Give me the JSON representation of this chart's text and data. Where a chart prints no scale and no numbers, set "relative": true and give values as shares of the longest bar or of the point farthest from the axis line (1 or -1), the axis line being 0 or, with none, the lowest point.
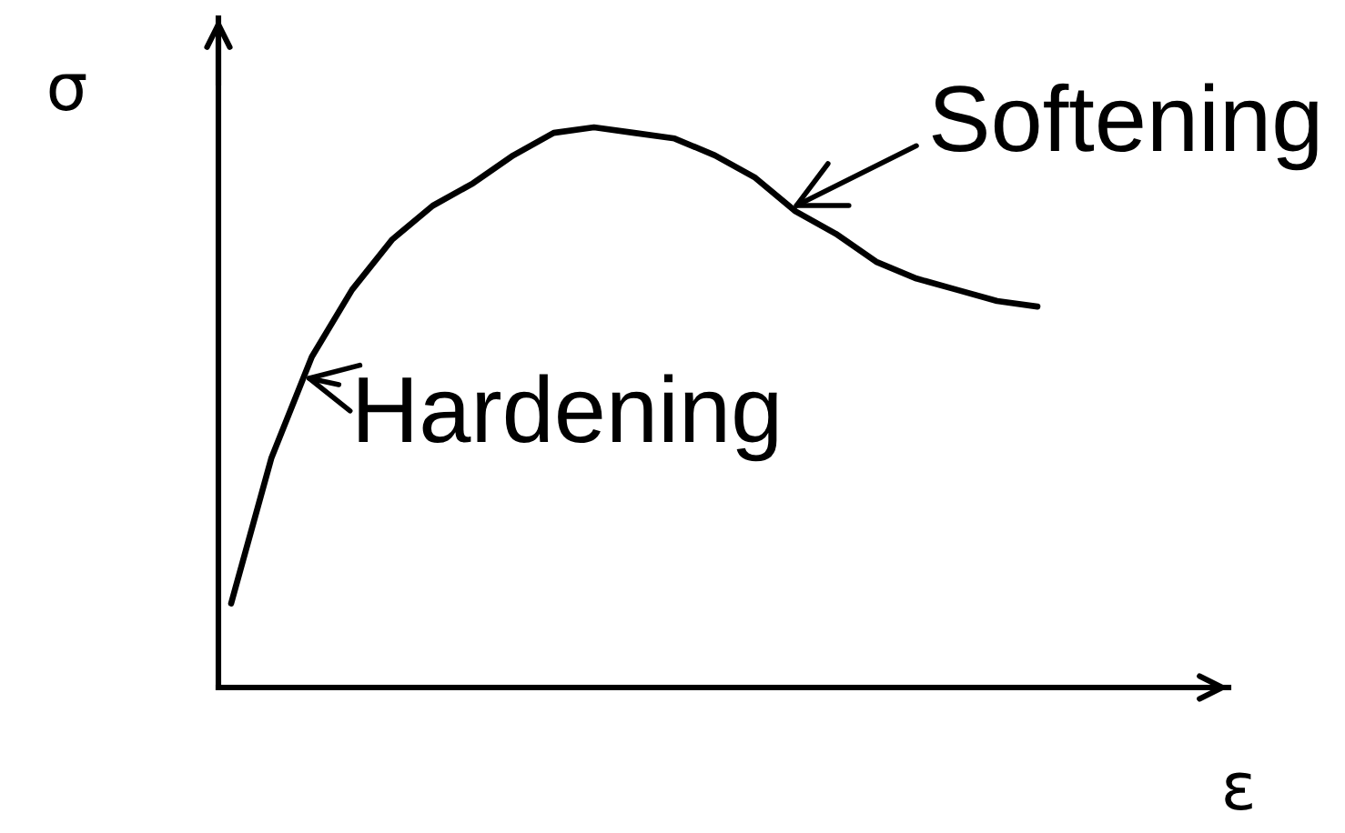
{
  "chart_data": {
    "type": "line",
    "relative": true,
    "xlabel": "ε",
    "ylabel": "σ",
    "categories": [
      null,
      null,
      null,
      null,
      null,
      null,
      null,
      null,
      null,
      null,
      null,
      null,
      null,
      null,
      null,
      null,
      null,
      null,
      null,
      null,
      null
    ],
    "series": [
      {
        "color": "#000000",
        "values": [
          0.15,
          0.41,
          0.59,
          0.71,
          0.8,
          0.86,
          0.9,
          0.95,
          0.99,
          1.0,
          0.99,
          0.98,
          0.95,
          0.91,
          0.85,
          0.81,
          0.76,
          0.73,
          0.71,
          0.69,
          0.68
        ]
      }
    ],
    "annotations": [
      "Hardening",
      "Softening"
    ]
  }
}
